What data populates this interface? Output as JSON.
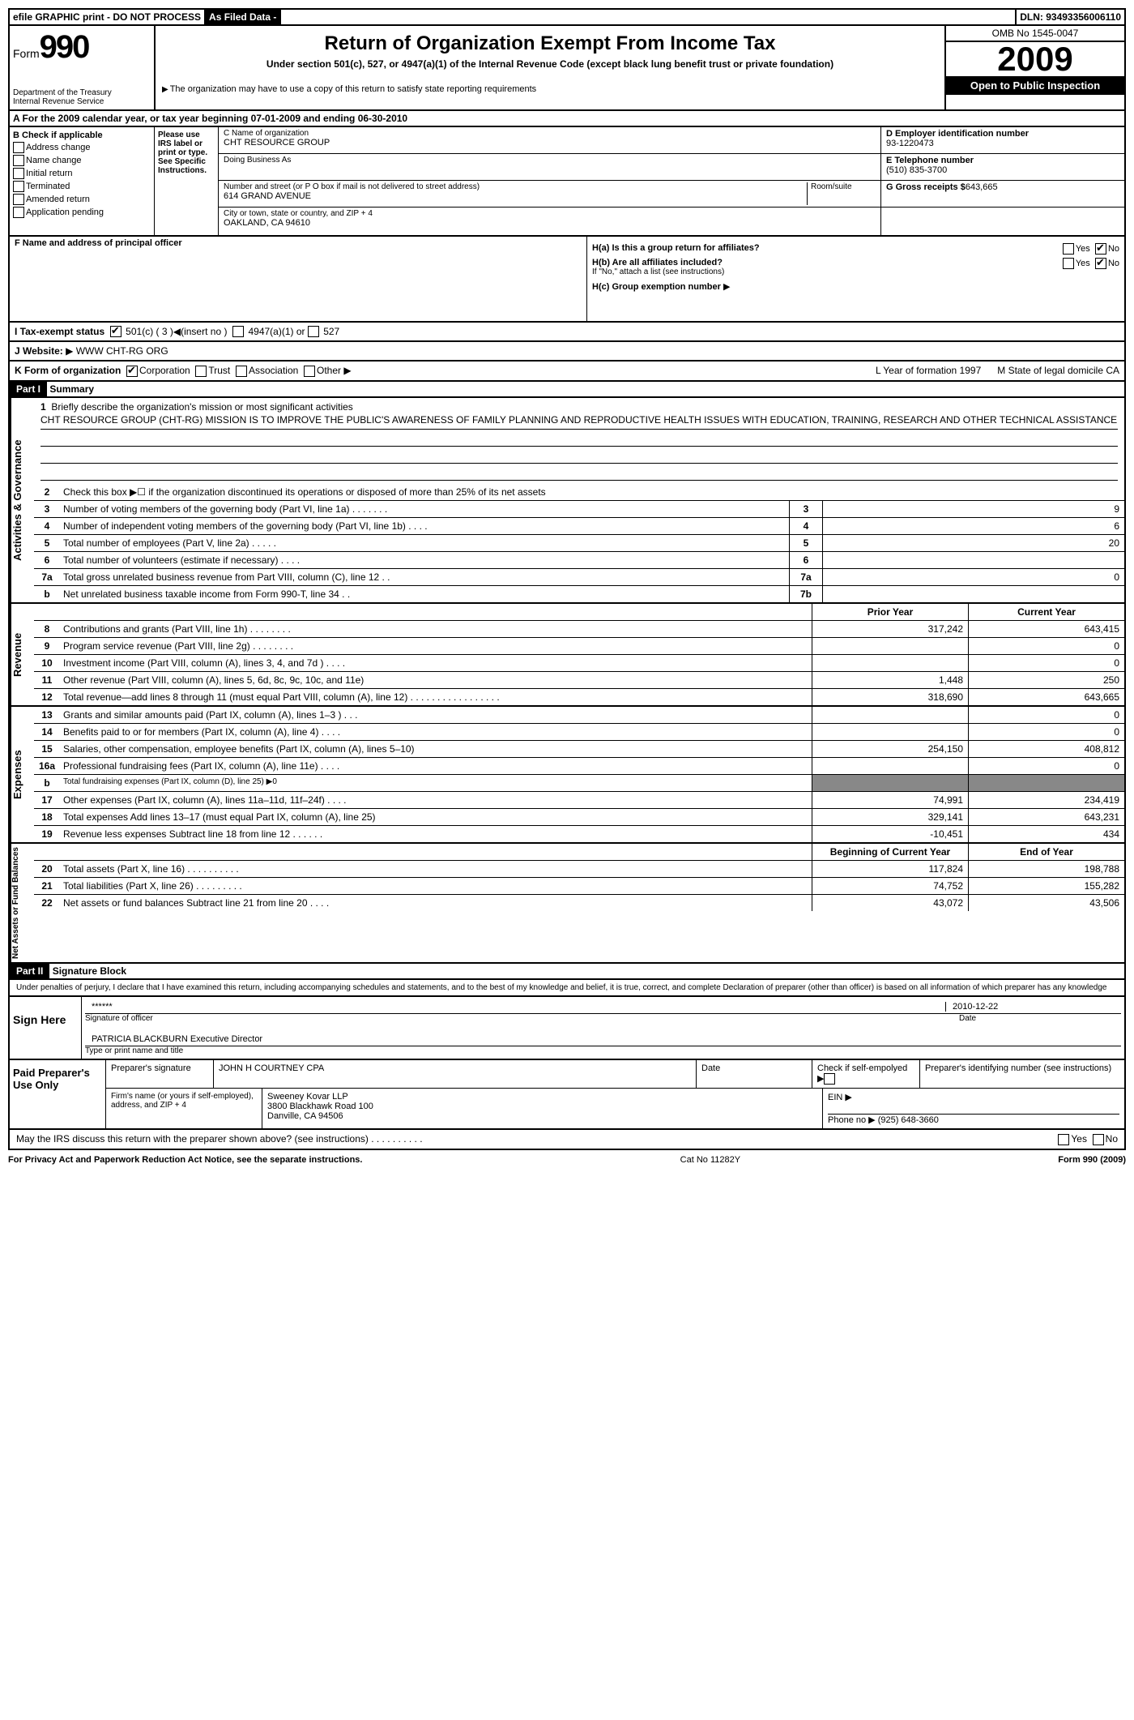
{
  "topbar": {
    "efile": "efile GRAPHIC print - DO NOT PROCESS",
    "asfiled": "As Filed Data -",
    "dln_label": "DLN:",
    "dln": "93493356006110"
  },
  "header": {
    "form_label": "Form",
    "form_num": "990",
    "dept": "Department of the Treasury",
    "irs": "Internal Revenue Service",
    "title": "Return of Organization Exempt From Income Tax",
    "subtitle": "Under section 501(c), 527, or 4947(a)(1) of the Internal Revenue Code (except black lung benefit trust or private foundation)",
    "note": "The organization may have to use a copy of this return to satisfy state reporting requirements",
    "omb": "OMB No 1545-0047",
    "year": "2009",
    "open": "Open to Public Inspection"
  },
  "row_a": "A  For the 2009 calendar year, or tax year beginning 07-01-2009    and ending 06-30-2010",
  "section_b": {
    "label": "B  Check if applicable",
    "opts": [
      "Address change",
      "Name change",
      "Initial return",
      "Terminated",
      "Amended return",
      "Application pending"
    ],
    "please": "Please use IRS label or print or type. See Specific Instruc­tions.",
    "c_label": "C Name of organization",
    "c_name": "CHT RESOURCE GROUP",
    "dba_label": "Doing Business As",
    "addr_label": "Number and street (or P O  box if mail is not delivered to street address)",
    "room": "Room/suite",
    "addr": "614 GRAND AVENUE",
    "city_label": "City or town, state or country, and ZIP + 4",
    "city": "OAKLAND, CA  94610",
    "d_label": "D Employer identification number",
    "ein": "93-1220473",
    "e_label": "E Telephone number",
    "phone": "(510) 835-3700",
    "g_label": "G Gross receipts $",
    "gross": "643,665"
  },
  "officer": {
    "f_label": "F  Name and address of principal officer",
    "ha": "H(a)  Is this a group return for affiliates?",
    "hb": "H(b)  Are all affiliates included?",
    "hb_note": "If \"No,\" attach a list  (see instructions)",
    "hc": "H(c)   Group exemption number",
    "yes": "Yes",
    "no": "No"
  },
  "row_i": {
    "label": "I   Tax-exempt status",
    "c501": "501(c) ( 3 )",
    "insert": "(insert no )",
    "a4947": "4947(a)(1) or",
    "s527": "527"
  },
  "row_j": {
    "label": "J   Website:",
    "site": "WWW CHT-RG ORG"
  },
  "row_k": {
    "label": "K Form of organization",
    "opts": [
      "Corporation",
      "Trust",
      "Association",
      "Other"
    ],
    "l": "L Year of formation  1997",
    "m": "M State of legal domicile  CA"
  },
  "part1": {
    "header": "Part I",
    "title": "Summary",
    "l1_label": "Briefly describe the organization's mission or most significant activities",
    "l1_text": "CHT RESOURCE GROUP (CHT-RG) MISSION IS TO IMPROVE THE PUBLIC'S AWARENESS OF FAMILY PLANNING AND REPRODUCTIVE HEALTH ISSUES WITH EDUCATION, TRAINING, RESEARCH AND OTHER TECHNICAL ASSISTANCE",
    "l2": "Check this box ▶☐ if the organization discontinued its operations or disposed of more than 25% of its net assets",
    "lines_gov": [
      {
        "n": "3",
        "t": "Number of voting members of the governing body (Part VI, line 1a)  .   .   .   .   .   .   .",
        "b": "3",
        "v": "9"
      },
      {
        "n": "4",
        "t": "Number of independent voting members of the governing body (Part VI, line 1b)   .   .   .   .",
        "b": "4",
        "v": "6"
      },
      {
        "n": "5",
        "t": "Total number of employees (Part V, line 2a)   .   .   .   .   .",
        "b": "5",
        "v": "20"
      },
      {
        "n": "6",
        "t": "Total number of volunteers (estimate if necessary)   .   .   .   .",
        "b": "6",
        "v": ""
      },
      {
        "n": "7a",
        "t": "Total gross unrelated business revenue from Part VIII, column (C), line 12   .   .",
        "b": "7a",
        "v": "0"
      },
      {
        "n": "b",
        "t": "Net unrelated business taxable income from Form 990-T, line 34   .   .",
        "b": "7b",
        "v": ""
      }
    ],
    "col_py": "Prior Year",
    "col_cy": "Current Year",
    "lines_rev": [
      {
        "n": "8",
        "t": "Contributions and grants (Part VIII, line 1h)   .   .   .   .   .   .   .   .",
        "py": "317,242",
        "cy": "643,415"
      },
      {
        "n": "9",
        "t": "Program service revenue (Part VIII, line 2g)   .   .   .   .   .   .   .   .",
        "py": "",
        "cy": "0"
      },
      {
        "n": "10",
        "t": "Investment income (Part VIII, column (A), lines 3, 4, and 7d )   .   .   .   .",
        "py": "",
        "cy": "0"
      },
      {
        "n": "11",
        "t": "Other revenue (Part VIII, column (A), lines 5, 6d, 8c, 9c, 10c, and 11e)",
        "py": "1,448",
        "cy": "250"
      },
      {
        "n": "12",
        "t": "Total revenue—add lines 8 through 11 (must equal Part VIII, column (A), line 12)   .   .   .   .   .   .   .   .   .   .   .   .   .   .   .   .   .",
        "py": "318,690",
        "cy": "643,665"
      }
    ],
    "lines_exp": [
      {
        "n": "13",
        "t": "Grants and similar amounts paid (Part IX, column (A), lines 1–3 )   .   .   .",
        "py": "",
        "cy": "0"
      },
      {
        "n": "14",
        "t": "Benefits paid to or for members (Part IX, column (A), line 4)   .   .   .   .",
        "py": "",
        "cy": "0"
      },
      {
        "n": "15",
        "t": "Salaries, other compensation, employee benefits (Part IX, column (A), lines 5–10)",
        "py": "254,150",
        "cy": "408,812"
      },
      {
        "n": "16a",
        "t": "Professional fundraising fees (Part IX, column (A), line 11e)   .   .   .   .",
        "py": "",
        "cy": "0"
      },
      {
        "n": "b",
        "t": "Total fundraising expenses (Part IX, column (D), line 25) ▶0",
        "py": "—",
        "cy": "—"
      },
      {
        "n": "17",
        "t": "Other expenses (Part IX, column (A), lines 11a–11d, 11f–24f)   .   .   .   .",
        "py": "74,991",
        "cy": "234,419"
      },
      {
        "n": "18",
        "t": "Total expenses  Add lines 13–17 (must equal Part IX, column (A), line 25)",
        "py": "329,141",
        "cy": "643,231"
      },
      {
        "n": "19",
        "t": "Revenue less expenses  Subtract line 18 from line 12  .   .   .   .   .   .",
        "py": "-10,451",
        "cy": "434"
      }
    ],
    "col_boy": "Beginning of Current Year",
    "col_eoy": "End of Year",
    "lines_net": [
      {
        "n": "20",
        "t": "Total assets (Part X, line 16)   .   .   .   .   .   .   .   .   .   .",
        "py": "117,824",
        "cy": "198,788"
      },
      {
        "n": "21",
        "t": "Total liabilities (Part X, line 26)   .   .   .   .   .   .   .   .   .",
        "py": "74,752",
        "cy": "155,282"
      },
      {
        "n": "22",
        "t": "Net assets or fund balances  Subtract line 21 from line 20   .   .   .   .",
        "py": "43,072",
        "cy": "43,506"
      }
    ],
    "vlabels": {
      "gov": "Activities & Governance",
      "rev": "Revenue",
      "exp": "Expenses",
      "net": "Net Assets or Fund Balances"
    }
  },
  "part2": {
    "header": "Part II",
    "title": "Signature Block",
    "perjury": "Under penalties of perjury, I declare that I have examined this return, including accompanying schedules and statements, and to the best of my knowledge and belief, it is true, correct, and complete  Declaration of preparer (other than officer) is based on all information of which preparer has any knowledge",
    "sign": "Sign Here",
    "stars": "******",
    "sig_officer": "Signature of officer",
    "date": "2010-12-22",
    "date_label": "Date",
    "name": "PATRICIA BLACKBURN  Executive Director",
    "name_label": "Type or print name and title"
  },
  "paid": {
    "label": "Paid Preparer's Use Only",
    "prep_sig": "Preparer's signature",
    "prep_name": "JOHN H COURTNEY CPA",
    "date": "Date",
    "self": "Check if self-empolyed ▶",
    "pin": "Preparer's identifying number (see instructions)",
    "firm_label": "Firm's name (or yours if self-employed), address, and ZIP + 4",
    "firm": "Sweeney Kovar LLP",
    "addr": "3800 Blackhawk Road 100",
    "city": "Danville, CA  94506",
    "ein": "EIN ▶",
    "phone_label": "Phone no  ▶",
    "phone": "(925) 648-3660"
  },
  "discuss": "May the IRS discuss this return with the preparer shown above? (see instructions)   .   .   .   .   .   .   .   .   .   .",
  "footer": {
    "left": "For Privacy Act and Paperwork Reduction Act Notice, see the separate instructions.",
    "mid": "Cat  No  11282Y",
    "right": "Form 990 (2009)"
  }
}
